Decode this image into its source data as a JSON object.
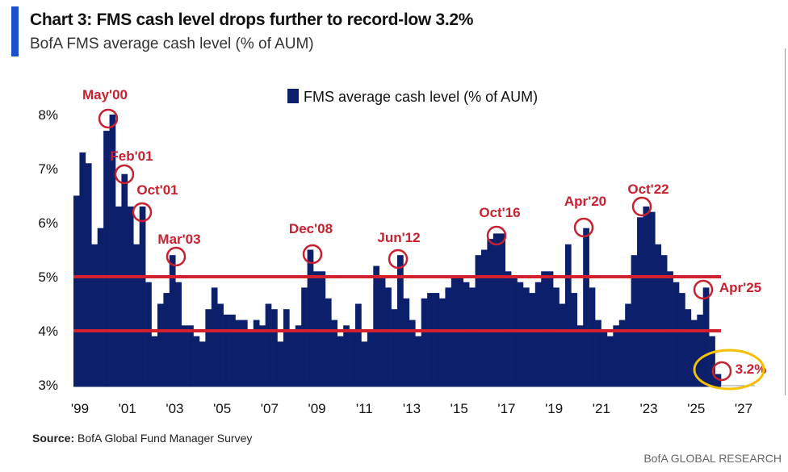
{
  "header": {
    "title": "Chart 3: FMS cash level drops further to record-low 3.2%",
    "subtitle": "BofA FMS average cash level (% of AUM)"
  },
  "footer": {
    "source_label": "Source:",
    "source_text": "BofA Global Fund Manager Survey",
    "brand": "BofA GLOBAL RESEARCH"
  },
  "colors": {
    "bars": "#0b1f6b",
    "reference_lines": "#d3202e",
    "annotations": "#c8202f",
    "highlight": "#f5c000",
    "accent": "#1a4fd0"
  },
  "chart_data": {
    "type": "bar",
    "title": "",
    "xlabel": "",
    "ylabel": "",
    "legend": {
      "position": "top-center",
      "entries": [
        "FMS average cash level (% of AUM)"
      ]
    },
    "ylim": [
      3,
      8.4
    ],
    "yticks": [
      "3%",
      "4%",
      "5%",
      "6%",
      "7%",
      "8%"
    ],
    "ytick_values": [
      3,
      4,
      5,
      6,
      7,
      8
    ],
    "xticks": [
      "'99",
      "'01",
      "'03",
      "'05",
      "'07",
      "'09",
      "'11",
      "'13",
      "'15",
      "'17",
      "'19",
      "'21",
      "'23",
      "'25",
      "'27"
    ],
    "xtick_years": [
      1999,
      2001,
      2003,
      2005,
      2007,
      2009,
      2011,
      2013,
      2015,
      2017,
      2019,
      2021,
      2023,
      2025,
      2027
    ],
    "frequency": "quarterly (approximate reading)",
    "start": "1999 Q1",
    "series": [
      {
        "name": "FMS average cash level (% of AUM)",
        "values": [
          6.5,
          7.3,
          7.1,
          5.6,
          5.9,
          7.7,
          8.0,
          6.3,
          6.9,
          6.3,
          5.6,
          6.3,
          4.9,
          3.9,
          4.5,
          4.7,
          5.4,
          4.9,
          4.1,
          4.1,
          3.9,
          3.8,
          4.4,
          4.8,
          4.5,
          4.3,
          4.3,
          4.2,
          4.2,
          4.0,
          4.2,
          4.1,
          4.5,
          4.4,
          3.8,
          4.4,
          4.0,
          4.1,
          4.8,
          5.5,
          5.1,
          5.1,
          4.6,
          4.2,
          3.9,
          4.1,
          4.0,
          4.5,
          3.8,
          4.0,
          5.2,
          5.0,
          4.8,
          4.4,
          5.4,
          4.6,
          4.2,
          3.9,
          4.6,
          4.7,
          4.7,
          4.6,
          4.8,
          5.0,
          5.0,
          4.9,
          4.8,
          5.4,
          5.5,
          5.7,
          5.8,
          5.8,
          5.1,
          5.0,
          4.9,
          4.8,
          4.7,
          4.9,
          5.1,
          5.1,
          4.8,
          4.5,
          5.6,
          4.7,
          4.1,
          5.9,
          4.8,
          4.2,
          4.0,
          3.9,
          4.1,
          4.2,
          4.5,
          5.4,
          6.1,
          6.3,
          6.2,
          5.6,
          5.4,
          5.1,
          4.9,
          4.7,
          4.4,
          4.2,
          4.3,
          4.8,
          3.9,
          3.2
        ]
      }
    ],
    "reference_lines": [
      5,
      4
    ],
    "annotations": [
      {
        "label": "May'00",
        "value": 8.0
      },
      {
        "label": "Feb'01",
        "value": 6.9
      },
      {
        "label": "Oct'01",
        "value": 6.3
      },
      {
        "label": "Mar'03",
        "value": 5.4
      },
      {
        "label": "Dec'08",
        "value": 5.5
      },
      {
        "label": "Jun'12",
        "value": 5.4
      },
      {
        "label": "Oct'16",
        "value": 5.8
      },
      {
        "label": "Apr'20",
        "value": 5.9
      },
      {
        "label": "Oct'22",
        "value": 6.3
      },
      {
        "label": "Apr'25",
        "value": 4.8
      },
      {
        "label": "3.2%",
        "value": 3.2
      }
    ]
  }
}
